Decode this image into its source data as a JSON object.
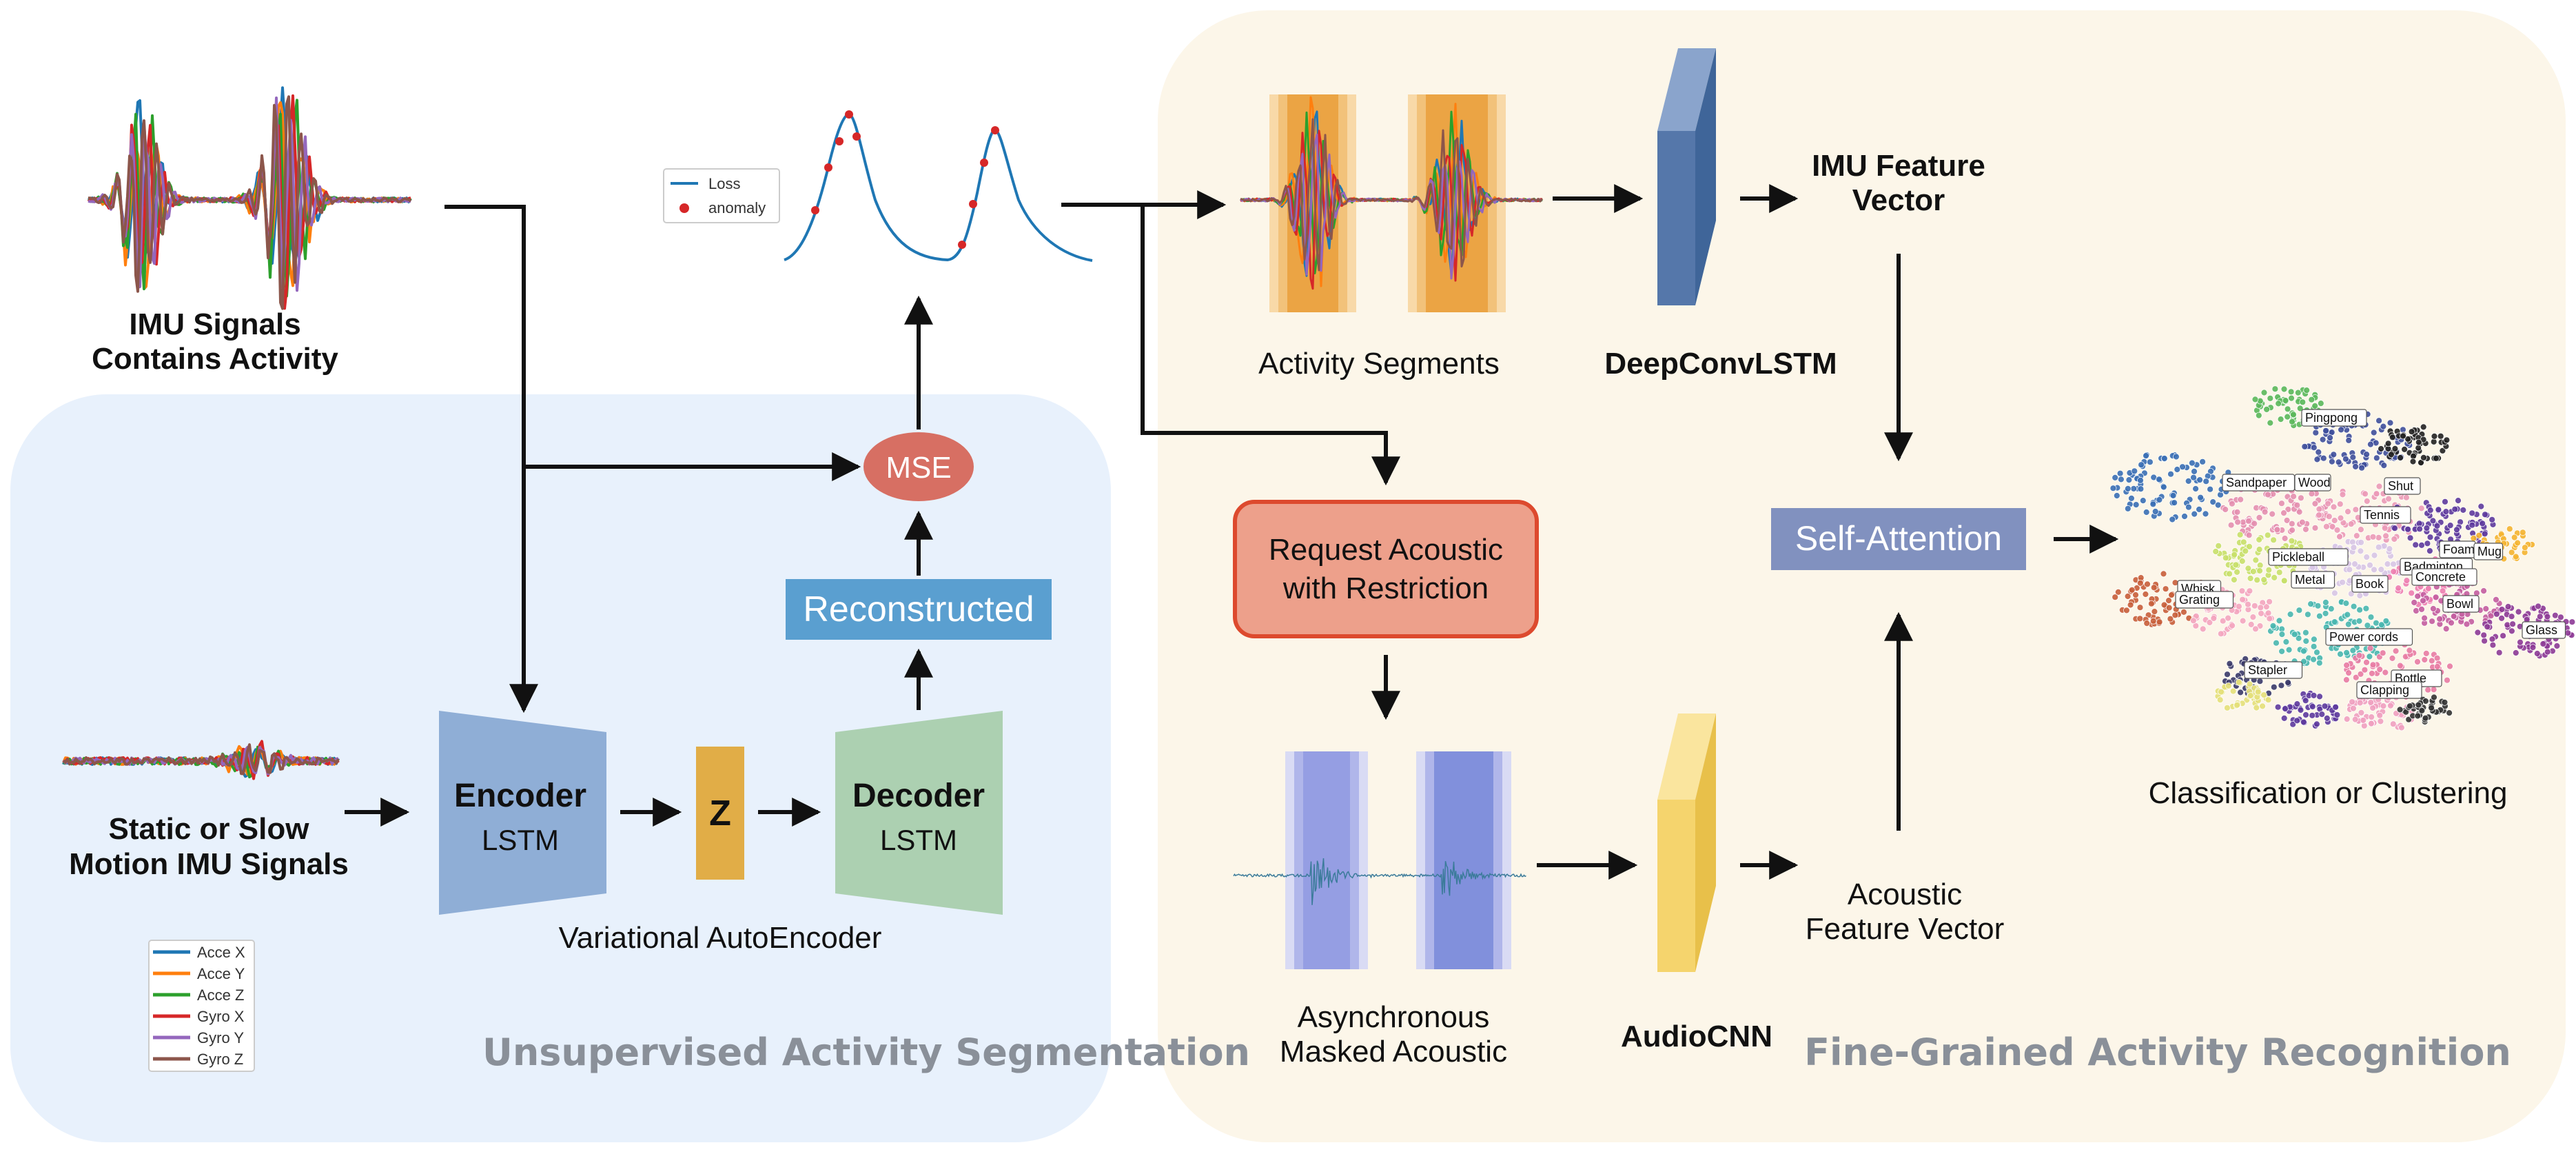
{
  "imu_signals": {
    "line1": "IMU Signals",
    "line2": "Contains Activity"
  },
  "static_signals": {
    "line1": "Static or Slow",
    "line2": "Motion IMU Signals"
  },
  "encoder": {
    "title": "Encoder",
    "sub": "LSTM"
  },
  "latent": {
    "label": "Z"
  },
  "decoder": {
    "title": "Decoder",
    "sub": "LSTM"
  },
  "vae_label": "Variational AutoEncoder",
  "reconstructed_label": "Reconstructed",
  "mse_label": "MSE",
  "loss_legend": {
    "loss": "Loss",
    "anomaly": "anomaly"
  },
  "imu_legend": [
    "Acce X",
    "Acce Y",
    "Acce Z",
    "Gyro X",
    "Gyro Y",
    "Gyro Z"
  ],
  "left_section_title": "Unsupervised Activity Segmentation",
  "right_section_title": "Fine-Grained Activity Recognition",
  "activity_segments_label": "Activity Segments",
  "deepconvlstm_label": "DeepConvLSTM",
  "imu_feature": {
    "line1": "IMU Feature",
    "line2": "Vector"
  },
  "request_box": {
    "line1": "Request Acoustic",
    "line2": "with Restriction"
  },
  "masked_acoustic": {
    "line1": "Asynchronous",
    "line2": "Masked Acoustic"
  },
  "audiocnn_label": "AudioCNN",
  "acoustic_feature": {
    "line1": "Acoustic",
    "line2": "Feature Vector"
  },
  "self_attention_label": "Self-Attention",
  "classification_label": "Classification or Clustering",
  "cluster_labels": [
    "Pingpong",
    "Sandpaper",
    "Wood",
    "Shut",
    "Tennis",
    "Pickleball",
    "Foam",
    "Mug",
    "Badminton",
    "Metal",
    "Book",
    "Concrete",
    "Whisk",
    "Grating",
    "Bowl",
    "Glass",
    "Power cords",
    "Stapler",
    "Bottle",
    "Clapping"
  ],
  "colors": {
    "left_panel": "#e8f1fc",
    "right_panel": "#fcf6e9",
    "section_title": "#8a9099",
    "encoder": "#8faed6",
    "latent": "#e1ad47",
    "decoder": "#acd0b1",
    "reconstructed": "#5a9fd0",
    "mse": "#d76f63",
    "request_fill": "#eda08b",
    "request_border": "#dd4a2e",
    "deepconv": "#5577aa",
    "audiocnn": "#f5d46d",
    "self_attention": "#8191bf",
    "segment": "#eba444",
    "mask": "#8190dc",
    "acce_x": "#1f77b4",
    "acce_y": "#ff7f0e",
    "acce_z": "#2ca02c",
    "gyro_x": "#d62728",
    "gyro_y": "#9467bd",
    "gyro_z": "#8c564b"
  }
}
